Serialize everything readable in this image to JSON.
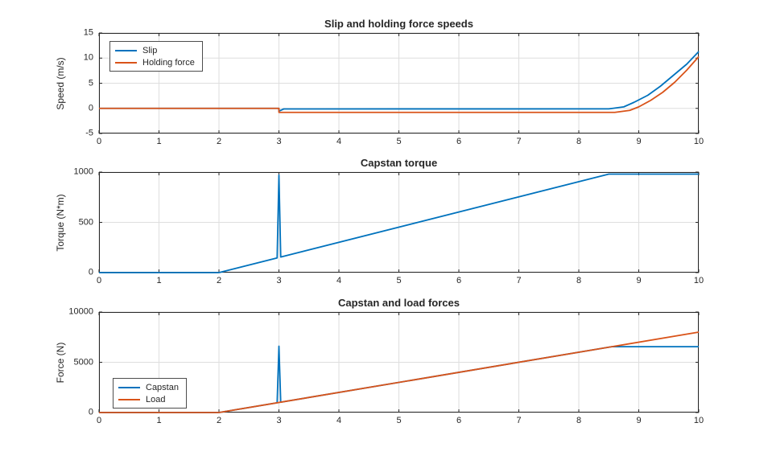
{
  "figure": {
    "background": "#ffffff",
    "axis_color": "#262626",
    "grid_color": "#dedede",
    "palette": {
      "blue": "#0072BD",
      "orange": "#D95319"
    }
  },
  "chart_data": [
    {
      "type": "line",
      "title": "Slip and holding force speeds",
      "xlabel": "",
      "ylabel": "Speed (m/s)",
      "xlim": [
        0,
        10
      ],
      "ylim": [
        -5,
        15
      ],
      "xticks": [
        0,
        1,
        2,
        3,
        4,
        5,
        6,
        7,
        8,
        9,
        10
      ],
      "yticks": [
        -5,
        0,
        5,
        10,
        15
      ],
      "grid": true,
      "legend": {
        "position": "top-left",
        "entries": [
          "Slip",
          "Holding force"
        ]
      },
      "series": [
        {
          "name": "Slip",
          "color": "#0072BD",
          "points": [
            [
              0,
              0
            ],
            [
              3,
              0
            ],
            [
              3,
              -0.55
            ],
            [
              3.08,
              -0.12
            ],
            [
              8.5,
              -0.1
            ],
            [
              8.75,
              0.3
            ],
            [
              8.92,
              1.2
            ],
            [
              9.15,
              2.6
            ],
            [
              9.36,
              4.4
            ],
            [
              9.58,
              6.6
            ],
            [
              9.8,
              8.8
            ],
            [
              10,
              11.3
            ]
          ]
        },
        {
          "name": "Holding force",
          "color": "#D95319",
          "points": [
            [
              0,
              0
            ],
            [
              3,
              0
            ],
            [
              3,
              -0.8
            ],
            [
              8.6,
              -0.8
            ],
            [
              8.85,
              -0.4
            ],
            [
              9.0,
              0.3
            ],
            [
              9.2,
              1.6
            ],
            [
              9.4,
              3.2
            ],
            [
              9.6,
              5.2
            ],
            [
              9.8,
              7.6
            ],
            [
              10,
              10.3
            ]
          ]
        }
      ]
    },
    {
      "type": "line",
      "title": "Capstan torque",
      "xlabel": "",
      "ylabel": "Torque (N*m)",
      "xlim": [
        0,
        10
      ],
      "ylim": [
        0,
        1000
      ],
      "xticks": [
        0,
        1,
        2,
        3,
        4,
        5,
        6,
        7,
        8,
        9,
        10
      ],
      "yticks": [
        0,
        500,
        1000
      ],
      "grid": true,
      "legend": null,
      "series": [
        {
          "name": "Capstan torque",
          "color": "#0072BD",
          "points": [
            [
              0,
              0
            ],
            [
              2,
              0
            ],
            [
              2.97,
              146
            ],
            [
              3,
              970
            ],
            [
              3.03,
              155
            ],
            [
              8.5,
              980
            ],
            [
              10,
              980
            ]
          ]
        }
      ]
    },
    {
      "type": "line",
      "title": "Capstan and load forces",
      "xlabel": "",
      "ylabel": "Force (N)",
      "xlim": [
        0,
        10
      ],
      "ylim": [
        0,
        10000
      ],
      "xticks": [
        0,
        1,
        2,
        3,
        4,
        5,
        6,
        7,
        8,
        9,
        10
      ],
      "yticks": [
        0,
        5000,
        10000
      ],
      "grid": true,
      "legend": {
        "position": "bottom-left",
        "entries": [
          "Capstan",
          "Load"
        ]
      },
      "series": [
        {
          "name": "Capstan",
          "color": "#0072BD",
          "points": [
            [
              0,
              0
            ],
            [
              2,
              0
            ],
            [
              2.97,
              970
            ],
            [
              3,
              6600
            ],
            [
              3.03,
              1030
            ],
            [
              8.55,
              6550
            ],
            [
              10,
              6550
            ]
          ]
        },
        {
          "name": "Load",
          "color": "#D95319",
          "points": [
            [
              0,
              0
            ],
            [
              2,
              0
            ],
            [
              10,
              8000
            ]
          ]
        }
      ]
    }
  ]
}
